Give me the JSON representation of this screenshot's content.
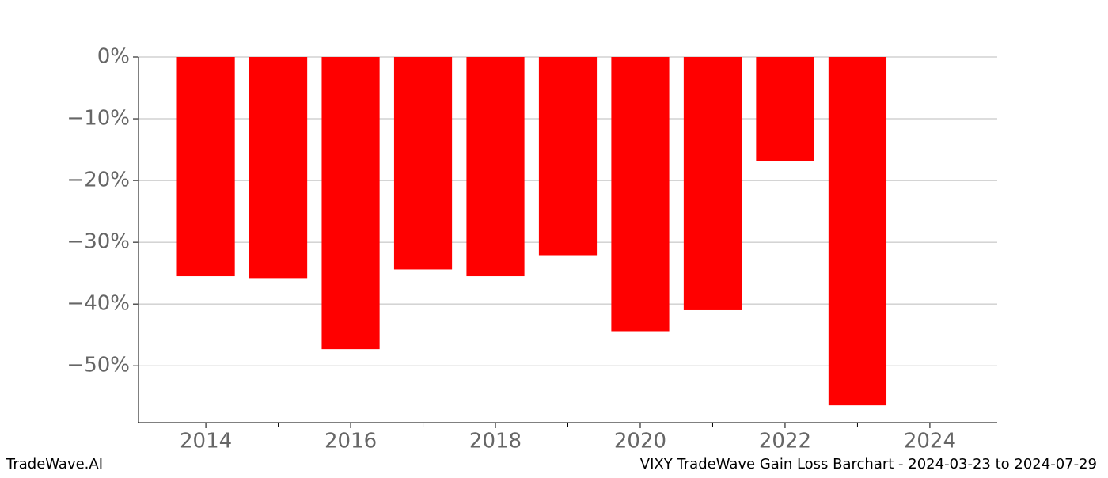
{
  "chart_data": {
    "type": "bar",
    "title": "VIXY TradeWave Gain Loss Barchart - 2024-03-23 to 2024-07-29",
    "brand": "TradeWave.AI",
    "x": [
      2014,
      2015,
      2016,
      2017,
      2018,
      2019,
      2020,
      2021,
      2022,
      2023
    ],
    "values": [
      -35.5,
      -35.8,
      -47.3,
      -34.4,
      -35.5,
      -32.1,
      -44.4,
      -41.0,
      -16.8,
      -56.4
    ],
    "color": "#ff0000",
    "xlim": [
      2013.07,
      2024.93
    ],
    "xticks": [
      2014,
      2016,
      2018,
      2020,
      2022,
      2024
    ],
    "xminor_ticks": [
      2015,
      2017,
      2019,
      2021,
      2023
    ],
    "ylim": [
      -59.2,
      0
    ],
    "yticks": [
      {
        "value": 0,
        "label": "0%"
      },
      {
        "value": -10,
        "label": "−10%"
      },
      {
        "value": -20,
        "label": "−20%"
      },
      {
        "value": -30,
        "label": "−30%"
      },
      {
        "value": -40,
        "label": "−40%"
      },
      {
        "value": -50,
        "label": "−50%"
      }
    ],
    "grid": true
  }
}
